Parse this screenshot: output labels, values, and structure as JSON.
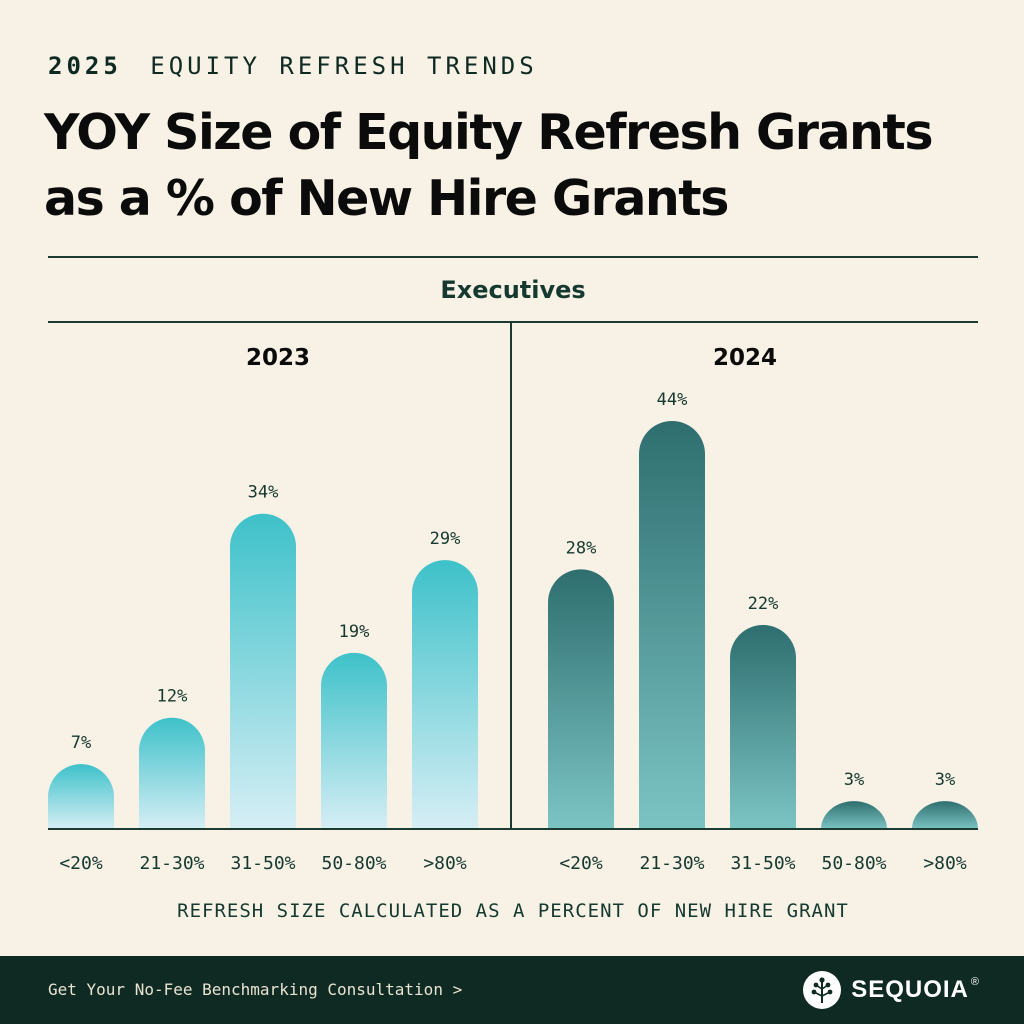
{
  "header": {
    "eyebrow_year": "2025",
    "eyebrow_text": "EQUITY REFRESH TRENDS",
    "title_line1": "YOY Size of Equity Refresh Grants",
    "title_line2": "as a % of New Hire Grants"
  },
  "section_label": "Executives",
  "footnote": "REFRESH SIZE CALCULATED AS A PERCENT OF NEW HIRE GRANT",
  "footer": {
    "cta": "Get Your No-Fee Benchmarking Consultation >",
    "brand": "SEQUOIA",
    "brand_mark": "®"
  },
  "colors": {
    "background": "#f7f1e6",
    "text_dark": "#0f2a22",
    "bar_2023_top": "#3ec1c9",
    "bar_2023_bottom": "#d6eef5",
    "bar_2024_top": "#2e6e6f",
    "bar_2024_bottom": "#7cc4c4",
    "footer_bg": "#0f2a22"
  },
  "chart_data": [
    {
      "type": "bar",
      "title": "2023",
      "categories": [
        "<20%",
        "21-30%",
        "31-50%",
        "50-80%",
        ">80%"
      ],
      "values": [
        7,
        12,
        34,
        19,
        29
      ],
      "value_labels": [
        "7%",
        "12%",
        "34%",
        "19%",
        "29%"
      ],
      "xlabel": "REFRESH SIZE CALCULATED AS A PERCENT OF NEW HIRE GRANT",
      "ylabel": "",
      "ylim": [
        0,
        44
      ],
      "grid": false
    },
    {
      "type": "bar",
      "title": "2024",
      "categories": [
        "<20%",
        "21-30%",
        "31-50%",
        "50-80%",
        ">80%"
      ],
      "values": [
        28,
        44,
        22,
        3,
        3
      ],
      "value_labels": [
        "28%",
        "44%",
        "22%",
        "3%",
        "3%"
      ],
      "xlabel": "REFRESH SIZE CALCULATED AS A PERCENT OF NEW HIRE GRANT",
      "ylabel": "",
      "ylim": [
        0,
        44
      ],
      "grid": false
    }
  ]
}
